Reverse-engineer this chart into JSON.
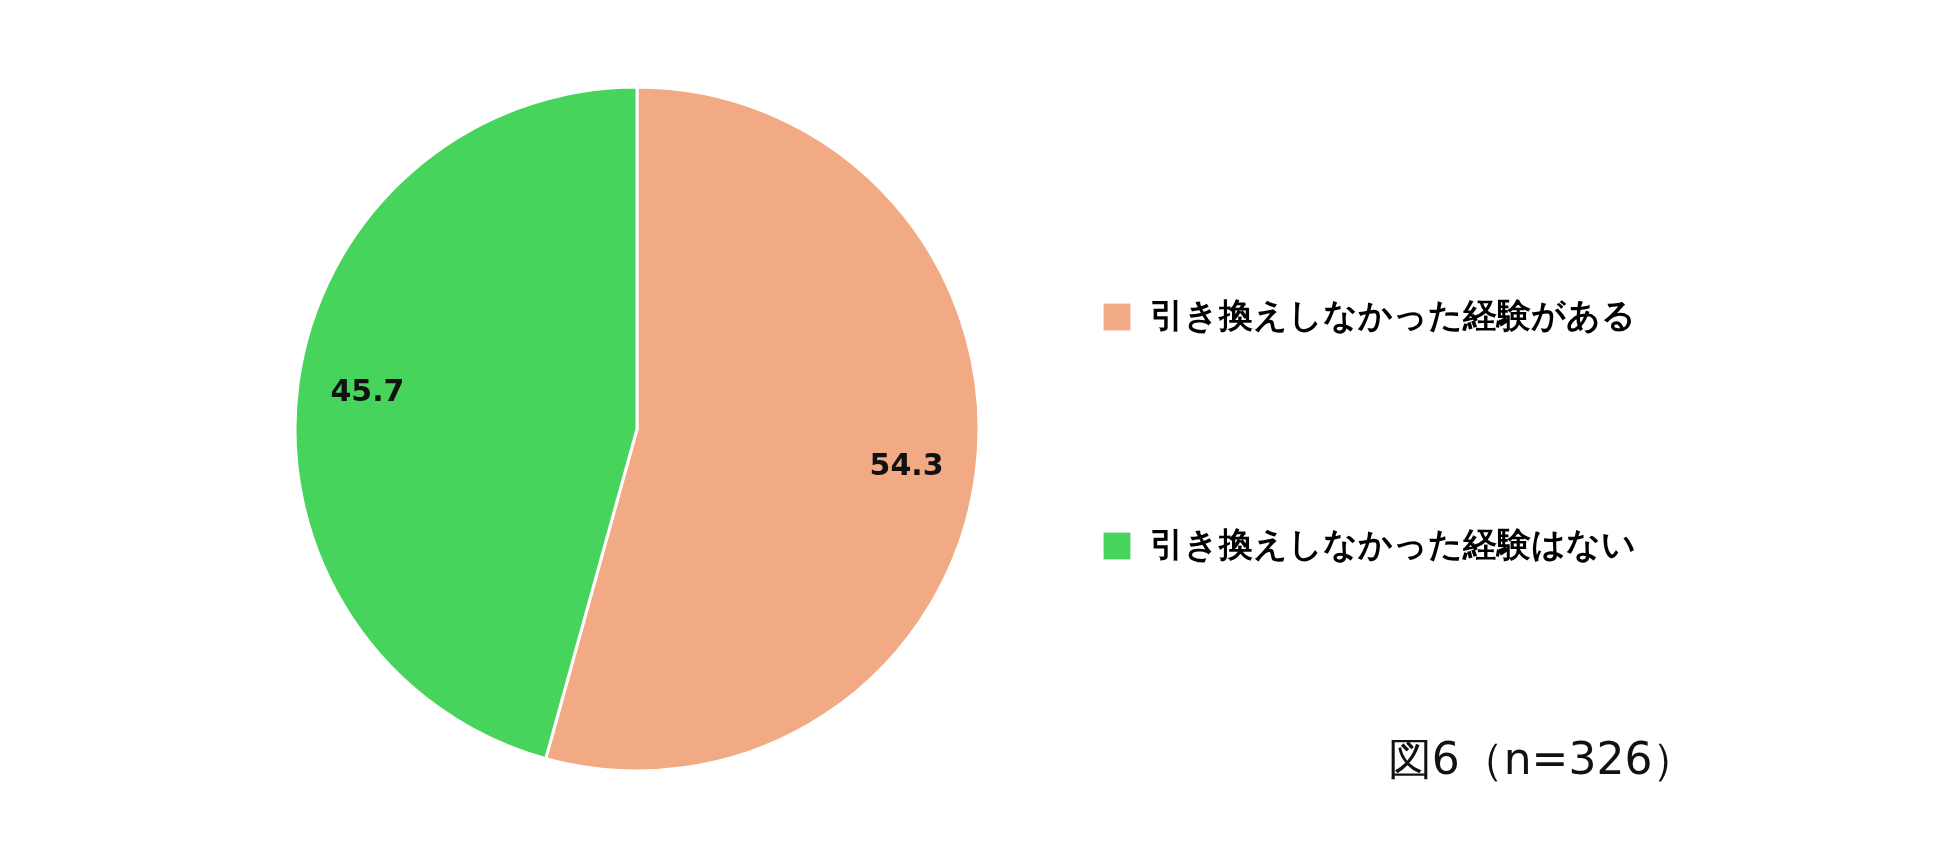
{
  "chart_data": {
    "type": "pie",
    "categories": [
      "引き換えしなかった経験がある",
      "引き換えしなかった経験はない"
    ],
    "values": [
      54.3,
      45.7
    ],
    "colors": [
      "#f2aa85",
      "#47d45c"
    ],
    "data_labels": true,
    "legend": "right",
    "annotations": [
      "図6（n=326）"
    ]
  }
}
